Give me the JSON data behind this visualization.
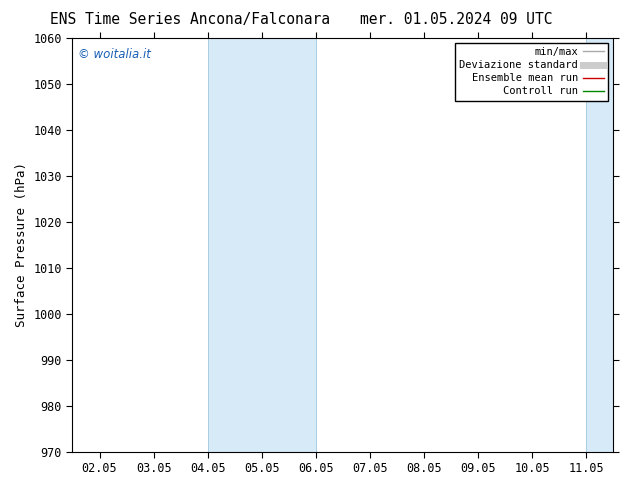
{
  "title_left": "ENS Time Series Ancona/Falconara",
  "title_right": "mer. 01.05.2024 09 UTC",
  "ylabel": "Surface Pressure (hPa)",
  "ylim": [
    970,
    1060
  ],
  "yticks": [
    970,
    980,
    990,
    1000,
    1010,
    1020,
    1030,
    1040,
    1050,
    1060
  ],
  "xtick_labels": [
    "02.05",
    "03.05",
    "04.05",
    "05.05",
    "06.05",
    "07.05",
    "08.05",
    "09.05",
    "10.05",
    "11.05"
  ],
  "band_color": "#d6eaf8",
  "band_edge_color": "#a9cce3",
  "watermark": "© woitalia.it",
  "watermark_color": "#1a5fb4",
  "legend_items": [
    {
      "label": "min/max",
      "color": "#aaaaaa",
      "lw": 1.0
    },
    {
      "label": "Deviazione standard",
      "color": "#cccccc",
      "lw": 5
    },
    {
      "label": "Ensemble mean run",
      "color": "#cc0000",
      "lw": 1.0
    },
    {
      "label": "Controll run",
      "color": "#008800",
      "lw": 1.0
    }
  ],
  "background_color": "#ffffff",
  "figsize": [
    6.34,
    4.9
  ],
  "dpi": 100,
  "title_fontsize": 10.5,
  "ylabel_fontsize": 9,
  "tick_fontsize": 8.5,
  "watermark_fontsize": 8.5,
  "legend_fontsize": 7.5
}
